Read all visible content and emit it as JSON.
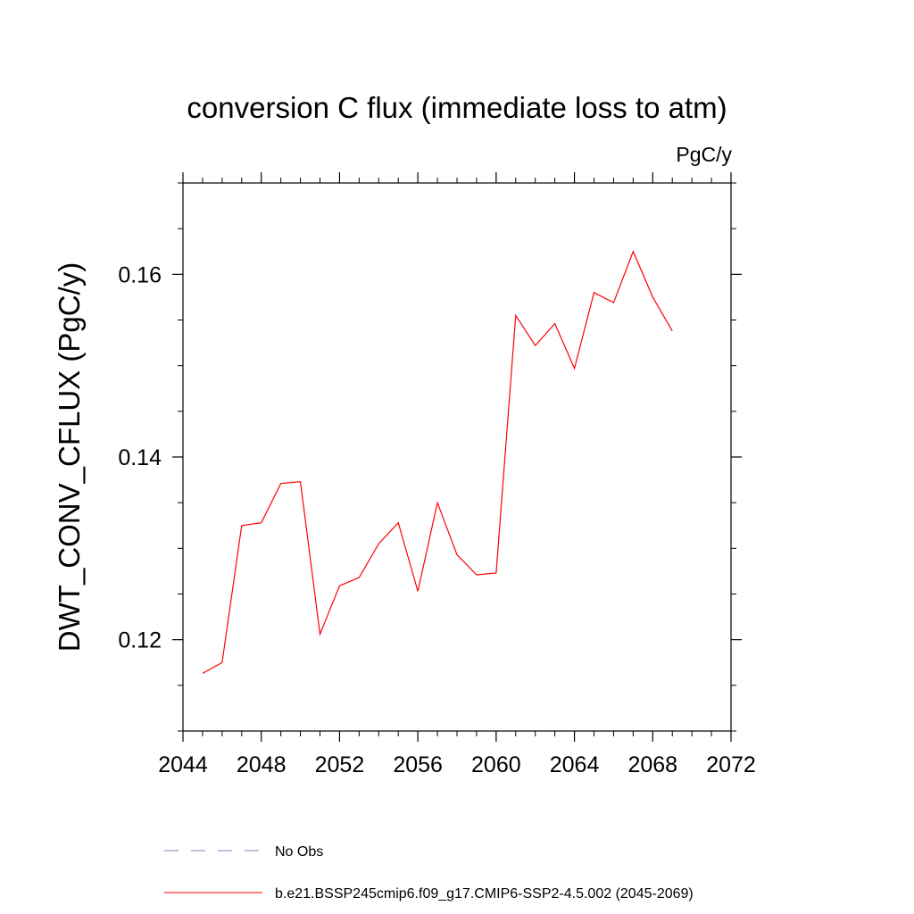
{
  "chart_data": {
    "type": "line",
    "title": "conversion C flux (immediate loss to atm)",
    "units": "PgC/y",
    "xlabel": "",
    "ylabel": "DWT_CONV_CFLUX  (PgC/y)",
    "xlim": [
      2044,
      2072
    ],
    "ylim": [
      0.11,
      0.17
    ],
    "x_ticks": [
      2044,
      2048,
      2052,
      2056,
      2060,
      2064,
      2068,
      2072
    ],
    "x_tick_labels": [
      "2044",
      "2048",
      "2052",
      "2056",
      "2060",
      "2064",
      "2068",
      "2072"
    ],
    "y_ticks": [
      0.12,
      0.14,
      0.16
    ],
    "y_tick_labels": [
      "0.12",
      "0.14",
      "0.16"
    ],
    "grid": false,
    "legend_placement": "bottom",
    "series": [
      {
        "name": "b.e21.BSSP245cmip6.f09_g17.CMIP6-SSP2-4.5.002 (2045-2069)",
        "color": "#ff0000",
        "style": "solid",
        "x": [
          2045,
          2046,
          2047,
          2048,
          2049,
          2050,
          2051,
          2052,
          2053,
          2054,
          2055,
          2056,
          2057,
          2058,
          2059,
          2060,
          2061,
          2062,
          2063,
          2064,
          2065,
          2066,
          2067,
          2068,
          2069
        ],
        "y": [
          0.1163,
          0.1175,
          0.1325,
          0.1328,
          0.1371,
          0.1373,
          0.1206,
          0.1259,
          0.1268,
          0.1305,
          0.1328,
          0.1253,
          0.135,
          0.1293,
          0.1271,
          0.1273,
          0.1555,
          0.1522,
          0.1546,
          0.1497,
          0.158,
          0.1569,
          0.1625,
          0.1575,
          0.1538
        ]
      },
      {
        "name": "No Obs",
        "color": "#8080c0",
        "style": "dashed",
        "x": [],
        "y": []
      }
    ],
    "legend": [
      {
        "label": "No Obs",
        "color": "#8080c0",
        "style": "dashed"
      },
      {
        "label": "b.e21.BSSP245cmip6.f09_g17.CMIP6-SSP2-4.5.002 (2045-2069)",
        "color": "#ff0000",
        "style": "solid"
      }
    ]
  }
}
